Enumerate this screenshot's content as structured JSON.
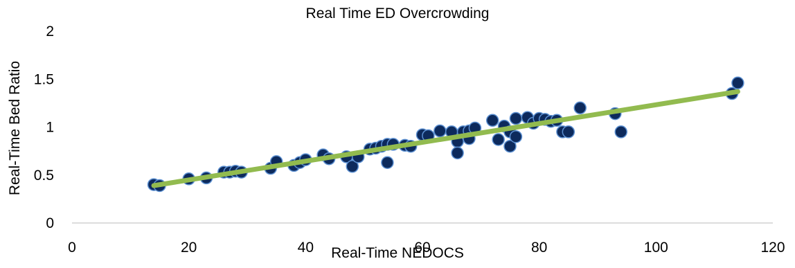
{
  "chart_data": {
    "type": "scatter",
    "title": "Real Time ED Overcrowding",
    "xlabel": "Real-Time NEDOCS",
    "ylabel": "Real-Time Bed Ratio",
    "xlim": [
      0,
      120
    ],
    "ylim": [
      0,
      2
    ],
    "x_ticks": [
      "0",
      "20",
      "40",
      "60",
      "80",
      "100",
      "120"
    ],
    "y_ticks": [
      "0",
      "0.5",
      "1",
      "1.5",
      "2"
    ],
    "grid": false,
    "legend": "none",
    "colors": {
      "marker_fill": "#0d2a5c",
      "marker_stroke": "#5b8fd1",
      "trendline": "#92bb4f",
      "axis": "#d0d0d0"
    },
    "series": [
      {
        "points": [
          [
            14,
            0.4
          ],
          [
            15,
            0.39
          ],
          [
            20,
            0.46
          ],
          [
            23,
            0.47
          ],
          [
            26,
            0.53
          ],
          [
            27,
            0.53
          ],
          [
            28,
            0.54
          ],
          [
            29,
            0.53
          ],
          [
            34,
            0.57
          ],
          [
            35,
            0.64
          ],
          [
            38,
            0.6
          ],
          [
            39,
            0.63
          ],
          [
            40,
            0.66
          ],
          [
            43,
            0.71
          ],
          [
            44,
            0.67
          ],
          [
            47,
            0.69
          ],
          [
            48,
            0.59
          ],
          [
            49,
            0.69
          ],
          [
            51,
            0.77
          ],
          [
            52,
            0.78
          ],
          [
            53,
            0.8
          ],
          [
            54,
            0.82
          ],
          [
            55,
            0.82
          ],
          [
            54,
            0.63
          ],
          [
            57,
            0.81
          ],
          [
            58,
            0.8
          ],
          [
            60,
            0.92
          ],
          [
            61,
            0.91
          ],
          [
            63,
            0.96
          ],
          [
            65,
            0.95
          ],
          [
            66,
            0.85
          ],
          [
            66,
            0.73
          ],
          [
            67,
            0.95
          ],
          [
            68,
            0.96
          ],
          [
            68,
            0.88
          ],
          [
            69,
            0.99
          ],
          [
            72,
            1.07
          ],
          [
            73,
            0.87
          ],
          [
            74,
            1.01
          ],
          [
            75,
            0.8
          ],
          [
            75,
            0.95
          ],
          [
            76,
            0.9
          ],
          [
            76,
            1.09
          ],
          [
            78,
            1.1
          ],
          [
            79,
            1.04
          ],
          [
            80,
            1.09
          ],
          [
            81,
            1.08
          ],
          [
            82,
            1.06
          ],
          [
            83,
            1.07
          ],
          [
            84,
            0.95
          ],
          [
            85,
            0.95
          ],
          [
            87,
            1.2
          ],
          [
            93,
            1.14
          ],
          [
            94,
            0.95
          ],
          [
            113,
            1.35
          ],
          [
            114,
            1.46
          ]
        ]
      }
    ],
    "trendline": {
      "x": [
        14,
        114
      ],
      "y": [
        0.39,
        1.37
      ]
    }
  }
}
